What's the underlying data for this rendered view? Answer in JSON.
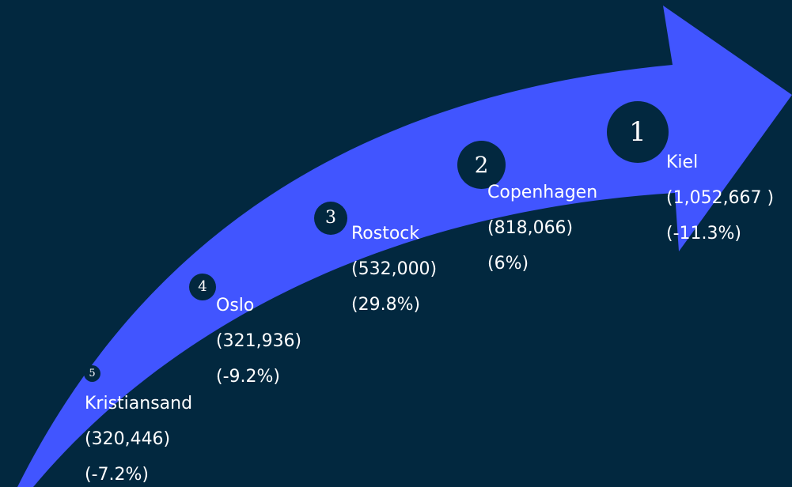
{
  "colors": {
    "background": "#02283f",
    "arrow": "#4155ff",
    "badge": "#02283f",
    "text": "#ffffff"
  },
  "cities": [
    {
      "rank": "1",
      "name": "Kiel",
      "value": "(1,052,667 )",
      "change": "(-11.3%)"
    },
    {
      "rank": "2",
      "name": "Copenhagen",
      "value": "(818,066)",
      "change": "(6%)"
    },
    {
      "rank": "3",
      "name": "Rostock",
      "value": "(532,000)",
      "change": "(29.8%)"
    },
    {
      "rank": "4",
      "name": "Oslo",
      "value": "(321,936)",
      "change": "(-9.2%)"
    },
    {
      "rank": "5",
      "name": "Kristiansand",
      "value": "(320,446)",
      "change": "(-7.2%)"
    }
  ]
}
